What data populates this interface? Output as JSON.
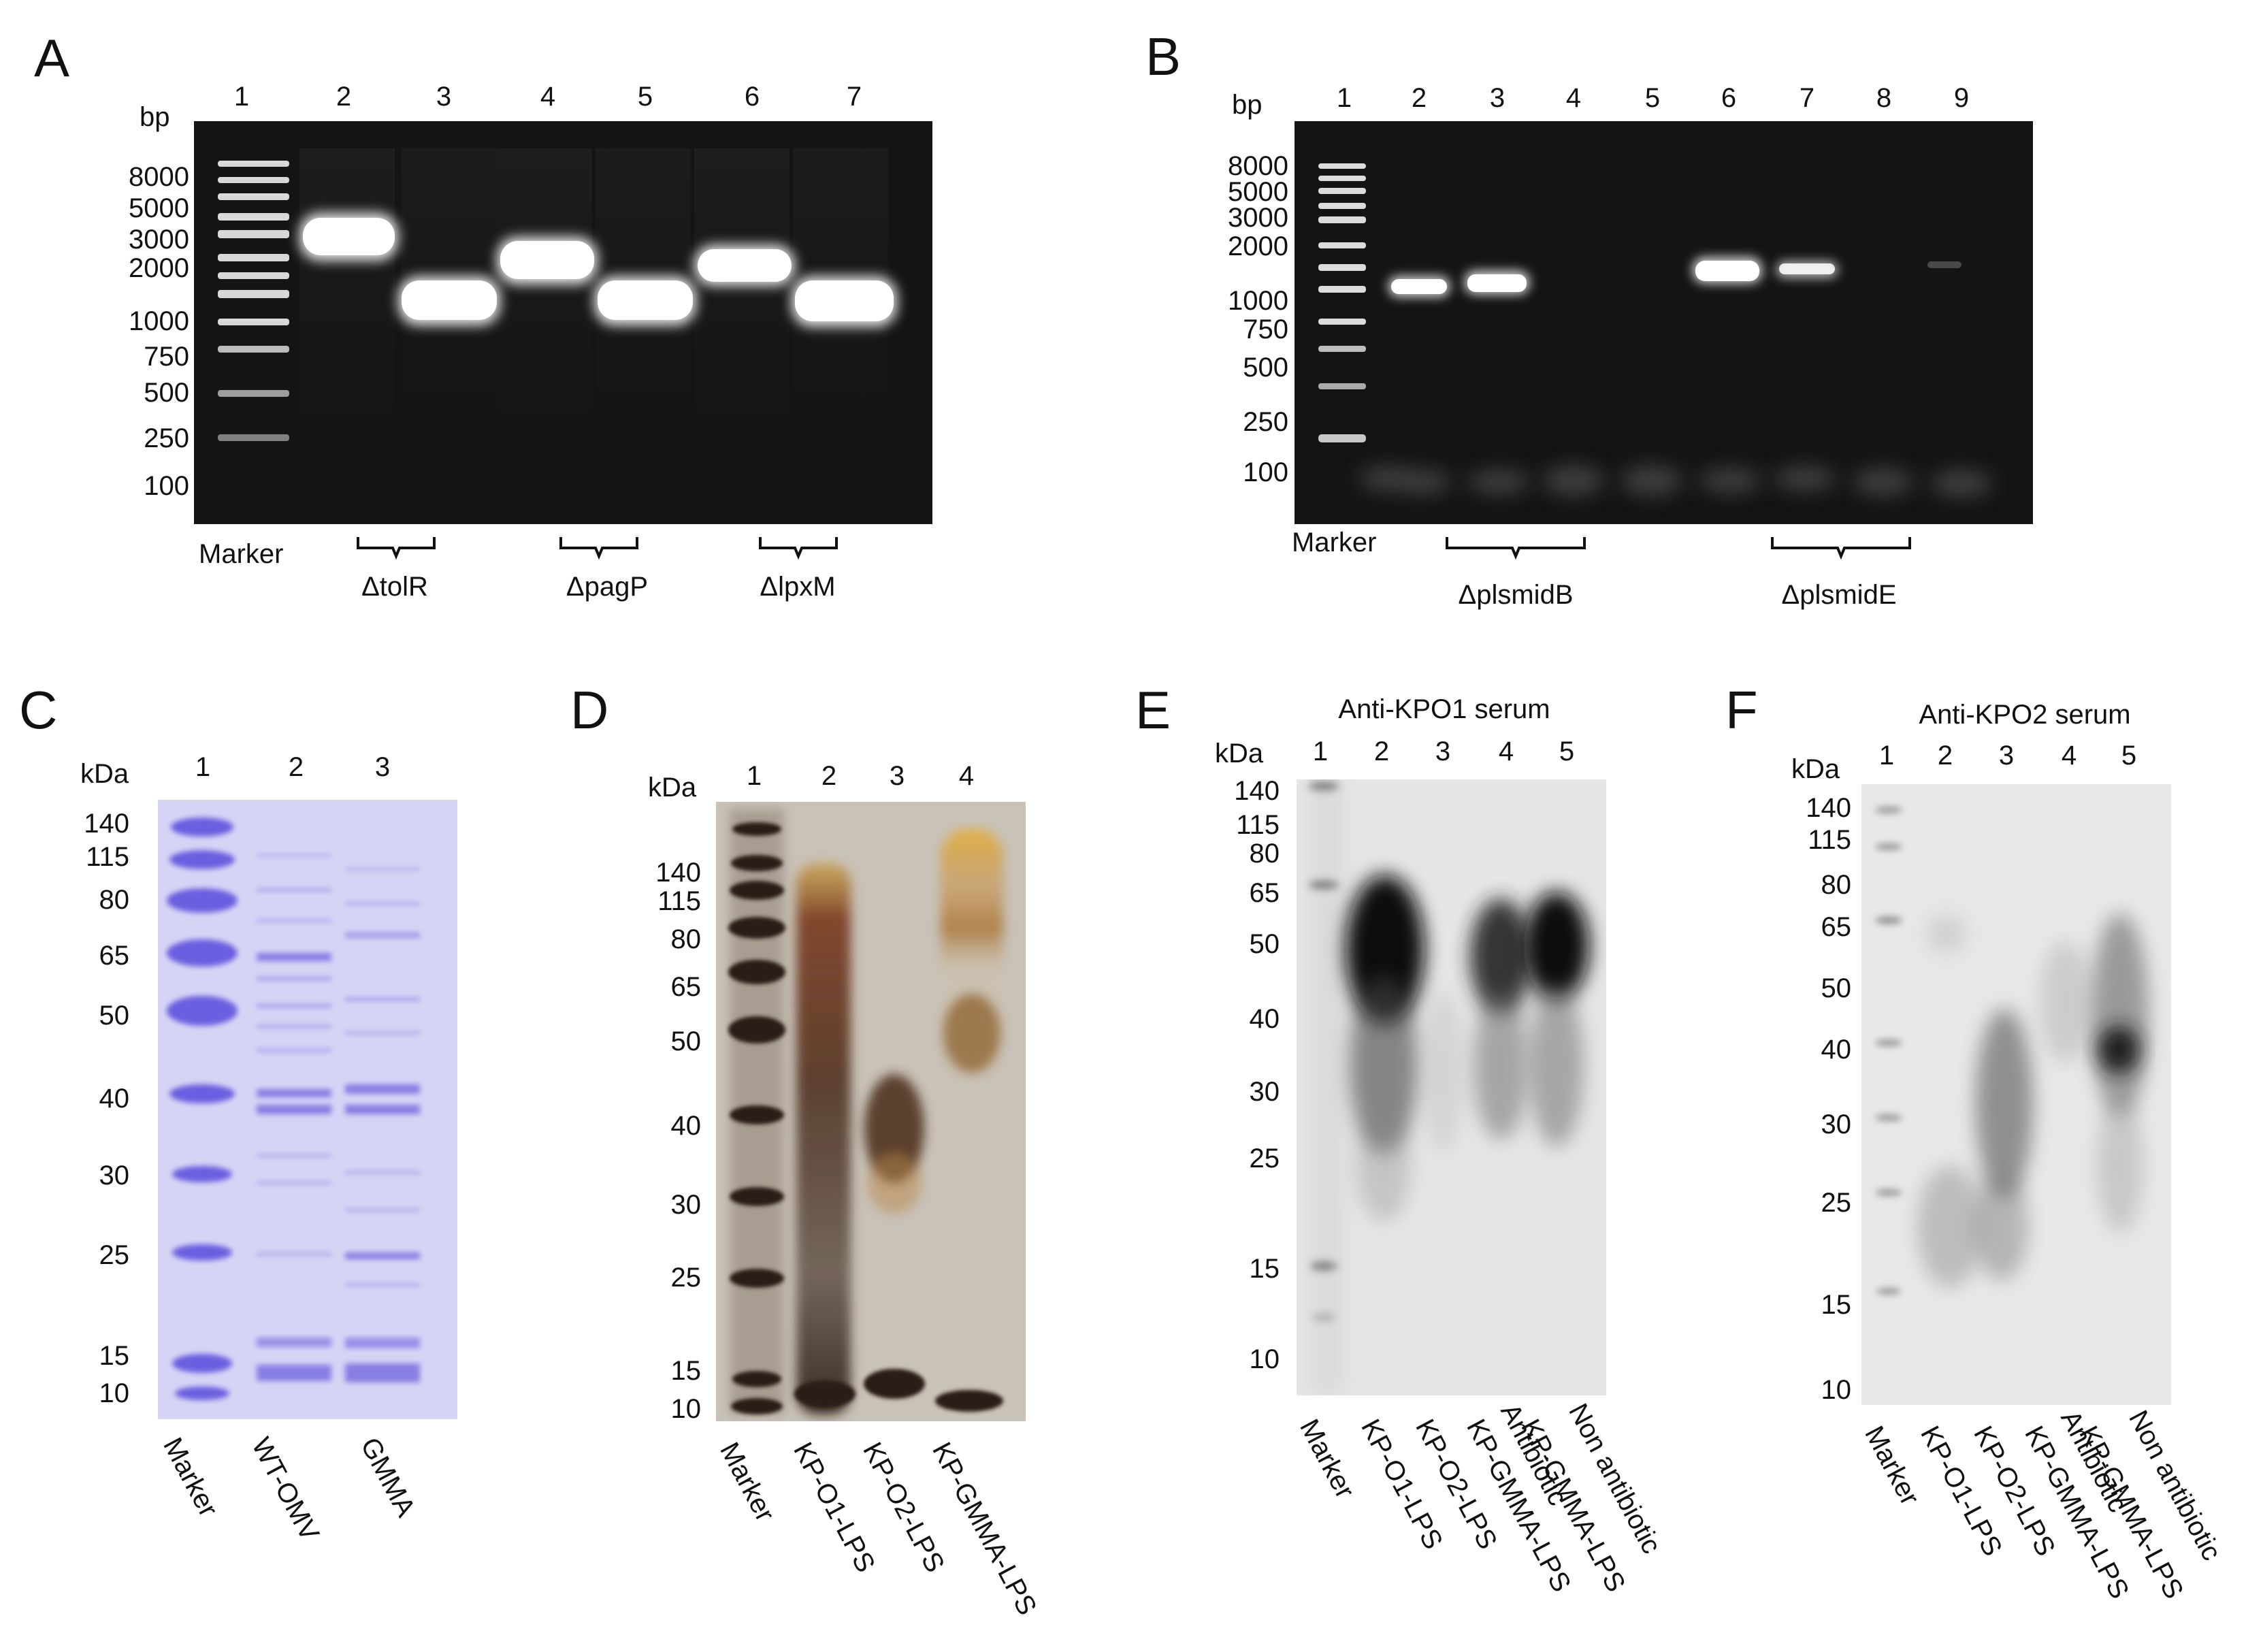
{
  "panels": {
    "A": {
      "letter": "A",
      "unit": "bp",
      "lanes": [
        "1",
        "2",
        "3",
        "4",
        "5",
        "6",
        "7"
      ],
      "markers": [
        "8000",
        "5000",
        "3000",
        "2000",
        "1000",
        "750",
        "500",
        "250",
        "100"
      ],
      "marker_label": "Marker",
      "groups": [
        "ΔtolR",
        "ΔpagP",
        "ΔlpxM"
      ]
    },
    "B": {
      "letter": "B",
      "unit": "bp",
      "lanes": [
        "1",
        "2",
        "3",
        "4",
        "5",
        "6",
        "7",
        "8",
        "9"
      ],
      "markers": [
        "8000",
        "5000",
        "3000",
        "2000",
        "1000",
        "750",
        "500",
        "250",
        "100"
      ],
      "marker_label": "Marker",
      "groups": [
        "ΔplsmidB",
        "ΔplsmidE"
      ]
    },
    "C": {
      "letter": "C",
      "unit": "kDa",
      "lanes": [
        "1",
        "2",
        "3"
      ],
      "markers": [
        "140",
        "115",
        "80",
        "65",
        "50",
        "40",
        "30",
        "25",
        "15",
        "10"
      ],
      "bottom_labels": [
        "Marker",
        "WT-OMV",
        "GMMA"
      ]
    },
    "D": {
      "letter": "D",
      "unit": "kDa",
      "lanes": [
        "1",
        "2",
        "3",
        "4"
      ],
      "markers": [
        "140",
        "115",
        "80",
        "65",
        "50",
        "40",
        "30",
        "25",
        "15",
        "10"
      ],
      "bottom_labels": [
        "Marker",
        "KP-O1-LPS",
        "KP-O2-LPS",
        "KP-GMMA-LPS"
      ]
    },
    "E": {
      "letter": "E",
      "title": "Anti-KPO1 serum",
      "unit": "kDa",
      "lanes": [
        "1",
        "2",
        "3",
        "4",
        "5"
      ],
      "markers": [
        "140",
        "115",
        "80",
        "65",
        "50",
        "40",
        "30",
        "25",
        "15",
        "10"
      ],
      "bottom_labels": [
        "Marker",
        "KP-O1-LPS",
        "KP-O2-LPS",
        "KP-GMMA-LPS",
        "KP-GMMA-LPS"
      ],
      "bottom_sublabels": [
        "Antibiotic",
        "Non antibiotic"
      ]
    },
    "F": {
      "letter": "F",
      "title": "Anti-KPO2 serum",
      "unit": "kDa",
      "lanes": [
        "1",
        "2",
        "3",
        "4",
        "5"
      ],
      "markers": [
        "140",
        "115",
        "80",
        "65",
        "50",
        "40",
        "30",
        "25",
        "15",
        "10"
      ],
      "bottom_labels": [
        "Marker",
        "KP-O1-LPS",
        "KP-O2-LPS",
        "KP-GMMA-LPS",
        "KP-GMMA-LPS"
      ],
      "bottom_sublabels": [
        "Antibiotic",
        "Non antibiotic"
      ]
    }
  }
}
